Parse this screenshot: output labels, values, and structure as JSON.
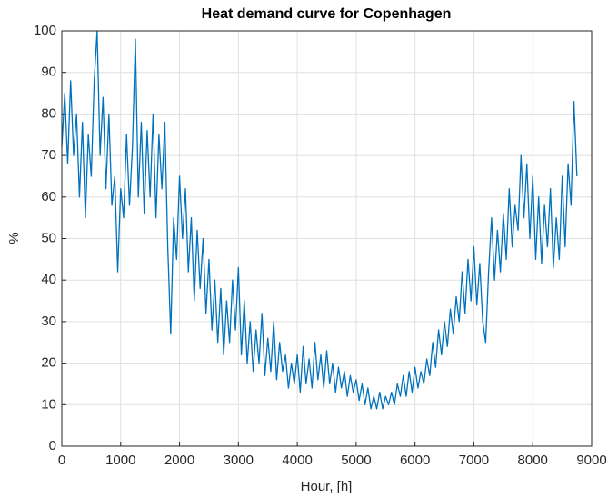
{
  "chart_data": {
    "type": "line",
    "title": "Heat demand curve for Copenhagen",
    "x_label": "Hour, [h]",
    "y_label": "%",
    "xlim": [
      0,
      9000
    ],
    "ylim": [
      0,
      100
    ],
    "xticks": [
      0,
      1000,
      2000,
      3000,
      4000,
      5000,
      6000,
      7000,
      8000,
      9000
    ],
    "yticks": [
      0,
      10,
      20,
      30,
      40,
      50,
      60,
      70,
      80,
      90,
      100
    ],
    "grid": true,
    "x": [
      0,
      50,
      100,
      150,
      200,
      250,
      300,
      350,
      400,
      450,
      500,
      550,
      600,
      650,
      700,
      750,
      800,
      850,
      900,
      950,
      1000,
      1050,
      1100,
      1150,
      1200,
      1250,
      1300,
      1350,
      1400,
      1450,
      1500,
      1550,
      1600,
      1650,
      1700,
      1750,
      1800,
      1850,
      1900,
      1950,
      2000,
      2050,
      2100,
      2150,
      2200,
      2250,
      2300,
      2350,
      2400,
      2450,
      2500,
      2550,
      2600,
      2650,
      2700,
      2750,
      2800,
      2850,
      2900,
      2950,
      3000,
      3050,
      3100,
      3150,
      3200,
      3250,
      3300,
      3350,
      3400,
      3450,
      3500,
      3550,
      3600,
      3650,
      3700,
      3750,
      3800,
      3850,
      3900,
      3950,
      4000,
      4050,
      4100,
      4150,
      4200,
      4250,
      4300,
      4350,
      4400,
      4450,
      4500,
      4550,
      4600,
      4650,
      4700,
      4750,
      4800,
      4850,
      4900,
      4950,
      5000,
      5050,
      5100,
      5150,
      5200,
      5250,
      5300,
      5350,
      5400,
      5450,
      5500,
      5550,
      5600,
      5650,
      5700,
      5750,
      5800,
      5850,
      5900,
      5950,
      6000,
      6050,
      6100,
      6150,
      6200,
      6250,
      6300,
      6350,
      6400,
      6450,
      6500,
      6550,
      6600,
      6650,
      6700,
      6750,
      6800,
      6850,
      6900,
      6950,
      7000,
      7050,
      7100,
      7150,
      7200,
      7250,
      7300,
      7350,
      7400,
      7450,
      7500,
      7550,
      7600,
      7650,
      7700,
      7750,
      7800,
      7850,
      7900,
      7950,
      8000,
      8050,
      8100,
      8150,
      8200,
      8250,
      8300,
      8350,
      8400,
      8450,
      8500,
      8550,
      8600,
      8650,
      8700,
      8750
    ],
    "series": [
      {
        "name": "Heat demand",
        "color": "#0072bd",
        "values": [
          72,
          85,
          68,
          88,
          70,
          80,
          60,
          78,
          55,
          75,
          65,
          88,
          100,
          70,
          84,
          62,
          80,
          58,
          65,
          42,
          62,
          55,
          75,
          58,
          72,
          98,
          60,
          78,
          56,
          76,
          60,
          80,
          55,
          75,
          62,
          78,
          48,
          27,
          55,
          45,
          65,
          50,
          62,
          42,
          55,
          35,
          52,
          38,
          50,
          32,
          45,
          28,
          40,
          25,
          38,
          22,
          35,
          25,
          40,
          28,
          43,
          22,
          35,
          20,
          30,
          18,
          28,
          20,
          32,
          17,
          26,
          18,
          30,
          16,
          25,
          18,
          22,
          14,
          20,
          15,
          22,
          13,
          24,
          15,
          21,
          14,
          25,
          16,
          22,
          14,
          23,
          15,
          20,
          13,
          19,
          14,
          18,
          12,
          17,
          13,
          16,
          11,
          15,
          10,
          14,
          9,
          12,
          9,
          13,
          9,
          12,
          10,
          13,
          10,
          15,
          12,
          17,
          12,
          18,
          13,
          19,
          14,
          18,
          15,
          21,
          17,
          25,
          19,
          28,
          22,
          30,
          24,
          33,
          27,
          36,
          30,
          42,
          32,
          45,
          35,
          48,
          34,
          44,
          30,
          25,
          42,
          55,
          40,
          52,
          42,
          56,
          45,
          62,
          48,
          58,
          52,
          70,
          55,
          68,
          50,
          65,
          45,
          60,
          44,
          58,
          48,
          62,
          43,
          55,
          45,
          65,
          48,
          68,
          58,
          83,
          65
        ]
      }
    ]
  }
}
